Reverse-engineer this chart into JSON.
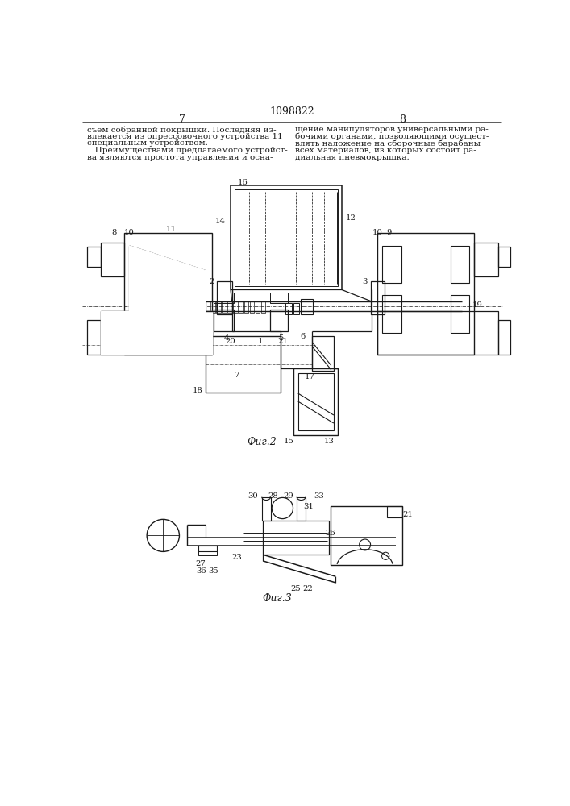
{
  "page_number_center": "1098822",
  "page_number_left": "7",
  "page_number_right": "8",
  "text_left_col": [
    "съем собранной покрышки. Последняя из-",
    "влекается из опрессовочного устройства 11",
    "специальным устройством.",
    "   Преимуществами предлагаемого устройст-",
    "ва являются простота управления и осна-"
  ],
  "text_right_col": [
    "щение манипуляторов универсальными ра-",
    "бочими органами, позволяющими осущест-",
    "влять наложение на сборочные барабаны",
    "всех материалов, из которых состоит ра-",
    "диальная пневмокрышка."
  ],
  "fig2_caption": "Фиг.2",
  "fig3_caption": "Фиг.3",
  "bg_color": "#ffffff",
  "lc": "#1a1a1a",
  "tc": "#1a1a1a",
  "fs_body": 7.5,
  "fs_lbl": 7.2,
  "fs_page": 9,
  "fs_cap": 9
}
